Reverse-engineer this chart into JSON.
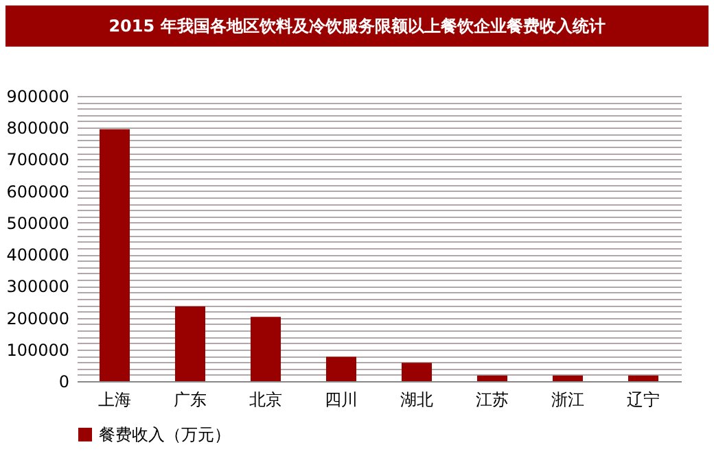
{
  "chart_data": {
    "type": "bar",
    "title": "2015 年我国各地区饮料及冷饮服务限额以上餐饮企业餐费收入统计",
    "categories": [
      "上海",
      "广东",
      "北京",
      "四川",
      "湖北",
      "江苏",
      "浙江",
      "辽宁"
    ],
    "series": [
      {
        "name": "餐费收入（万元）",
        "color": "#990000",
        "values": [
          795000,
          236000,
          203000,
          77000,
          58000,
          18000,
          18000,
          18000
        ]
      }
    ],
    "ylim": [
      0,
      900000
    ],
    "yticks": [
      0,
      {
        "value": 20000,
        "label": null
      },
      {
        "value": 40000,
        "label": null
      },
      {
        "value": 60000,
        "label": null
      },
      {
        "value": 80000,
        "label": null
      },
      100000,
      {
        "value": 120000,
        "label": null
      },
      {
        "value": 140000,
        "label": null
      },
      {
        "value": 160000,
        "label": null
      },
      {
        "value": 180000,
        "label": null
      },
      200000,
      {
        "value": 220000,
        "label": null
      },
      {
        "value": 240000,
        "label": null
      },
      {
        "value": 260000,
        "label": null
      },
      {
        "value": 280000,
        "label": null
      },
      300000,
      {
        "value": 320000,
        "label": null
      },
      {
        "value": 340000,
        "label": null
      },
      {
        "value": 360000,
        "label": null
      },
      {
        "value": 380000,
        "label": null
      },
      400000,
      {
        "value": 420000,
        "label": null
      },
      {
        "value": 440000,
        "label": null
      },
      {
        "value": 460000,
        "label": null
      },
      {
        "value": 480000,
        "label": null
      },
      500000,
      {
        "value": 520000,
        "label": null
      },
      {
        "value": 540000,
        "label": null
      },
      {
        "value": 560000,
        "label": null
      },
      {
        "value": 580000,
        "label": null
      },
      600000,
      {
        "value": 620000,
        "label": null
      },
      {
        "value": 640000,
        "label": null
      },
      {
        "value": 660000,
        "label": null
      },
      {
        "value": 680000,
        "label": null
      },
      700000,
      {
        "value": 720000,
        "label": null
      },
      {
        "value": 740000,
        "label": null
      },
      {
        "value": 760000,
        "label": null
      },
      {
        "value": 780000,
        "label": null
      },
      800000,
      {
        "value": 820000,
        "label": null
      },
      {
        "value": 840000,
        "label": null
      },
      {
        "value": 860000,
        "label": null
      },
      {
        "value": 880000,
        "label": null
      },
      900000
    ],
    "grid": true,
    "legend": "bottom"
  }
}
